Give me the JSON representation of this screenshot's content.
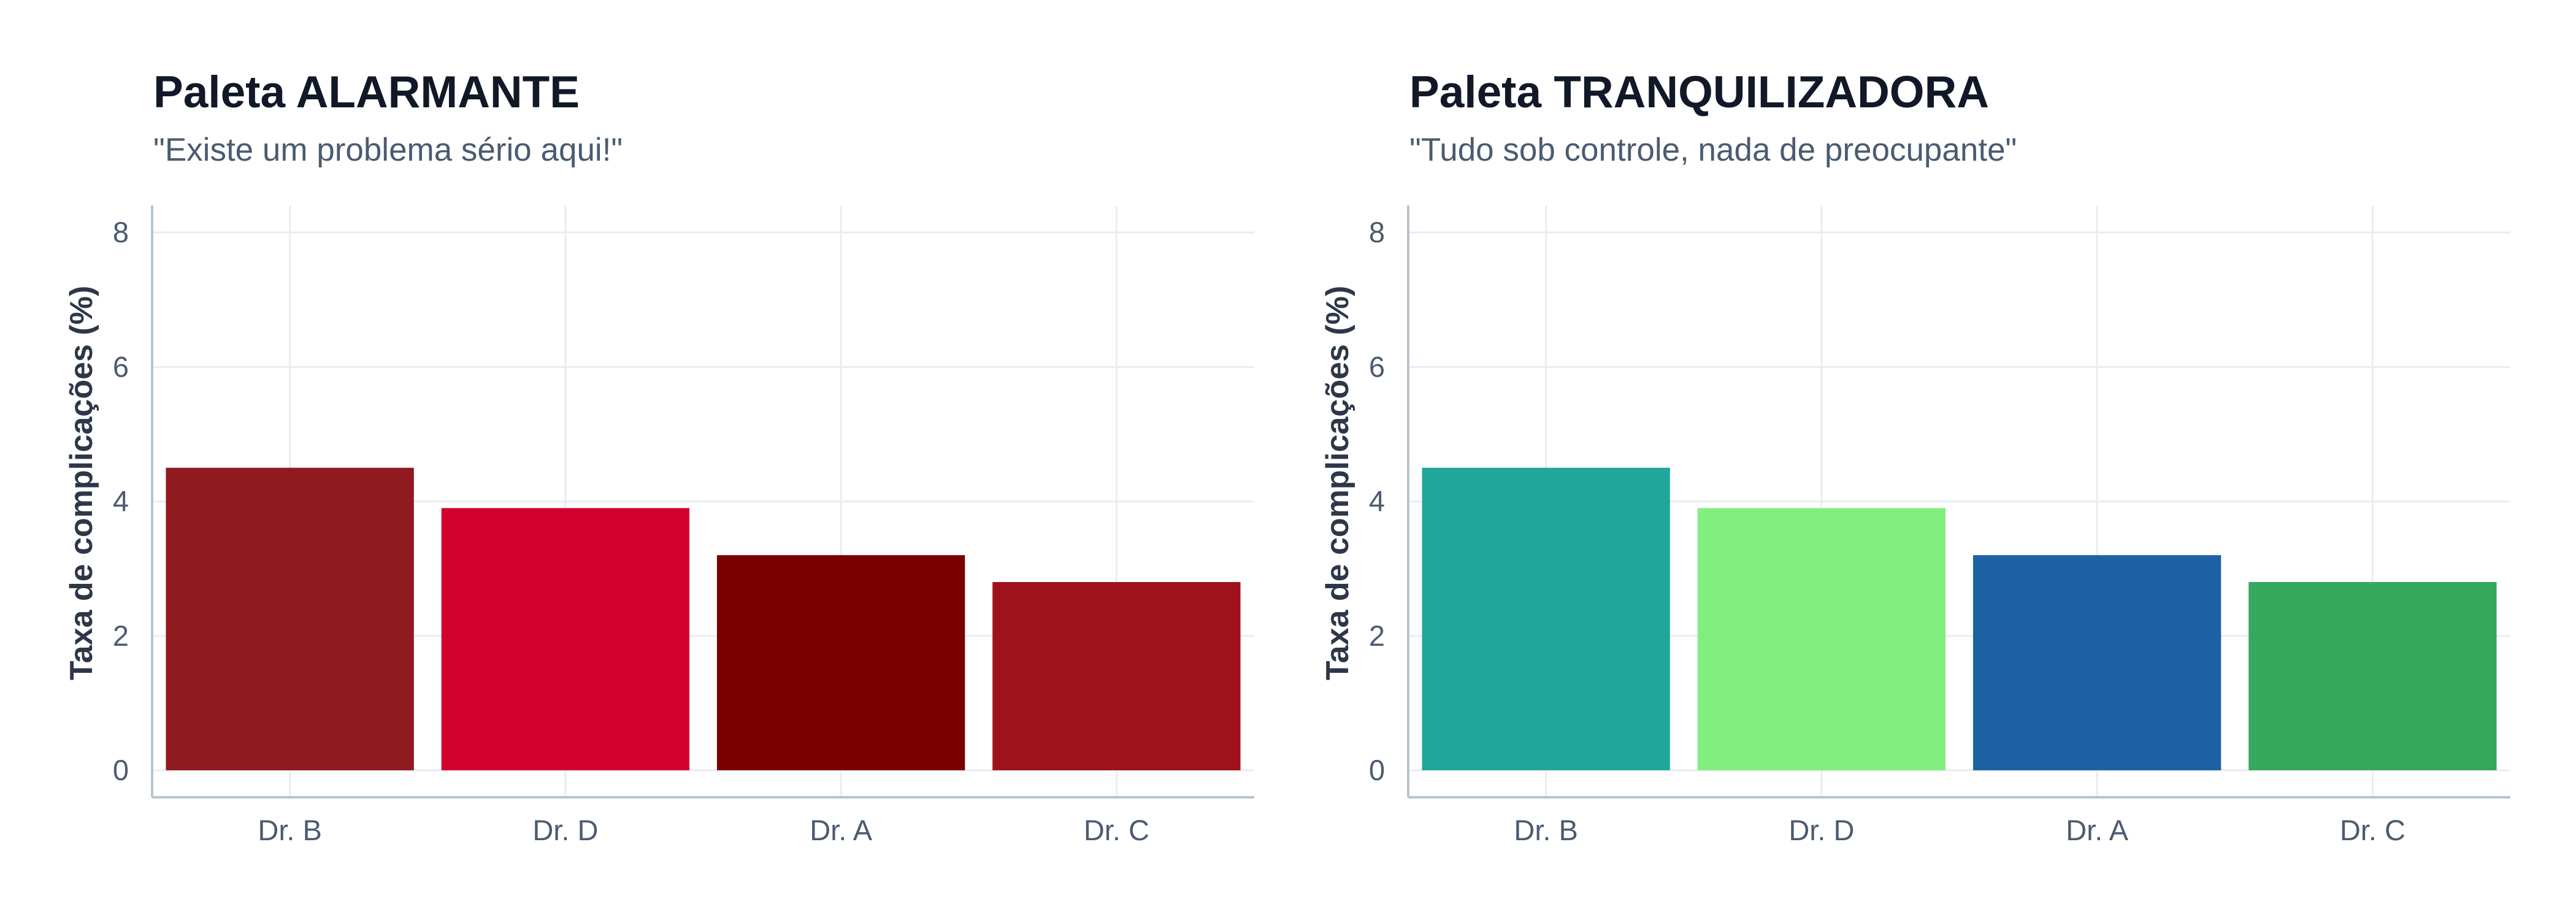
{
  "chart_data": [
    {
      "type": "bar",
      "title": "Paleta ALARMANTE",
      "subtitle": "\"Existe um problema sério aqui!\"",
      "xlabel": "",
      "ylabel": "Taxa de complicações (%)",
      "categories": [
        "Dr. B",
        "Dr. D",
        "Dr. A",
        "Dr. C"
      ],
      "values": [
        4.5,
        3.9,
        3.2,
        2.8
      ],
      "colors": [
        "#8f1a20",
        "#d1002d",
        "#7a0000",
        "#a0121b"
      ],
      "ylim": [
        0,
        8
      ],
      "yticks": [
        "0",
        "2",
        "4",
        "6",
        "8"
      ],
      "grid": true,
      "legend": "none"
    },
    {
      "type": "bar",
      "title": "Paleta TRANQUILIZADORA",
      "subtitle": "\"Tudo sob controle, nada de preocupante\"",
      "xlabel": "",
      "ylabel": "Taxa de complicações (%)",
      "categories": [
        "Dr. B",
        "Dr. D",
        "Dr. A",
        "Dr. C"
      ],
      "values": [
        4.5,
        3.9,
        3.2,
        2.8
      ],
      "colors": [
        "#21a69a",
        "#82ee7e",
        "#1c62a5",
        "#35a85d"
      ],
      "ylim": [
        0,
        8
      ],
      "yticks": [
        "0",
        "2",
        "4",
        "6",
        "8"
      ],
      "grid": true,
      "legend": "none"
    }
  ]
}
